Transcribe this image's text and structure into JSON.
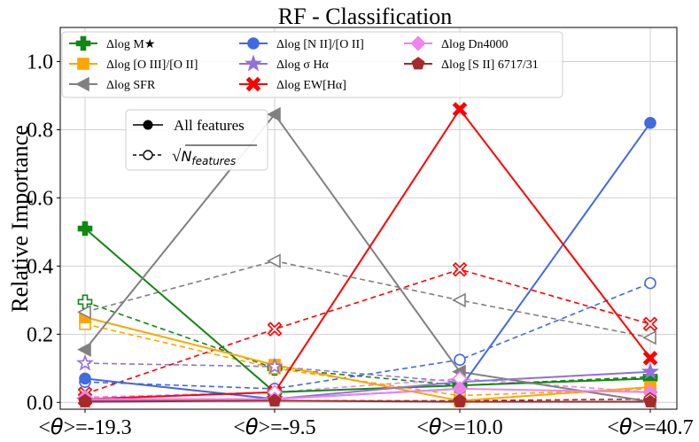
{
  "chart_data": {
    "type": "line",
    "title": "RF - Classification",
    "ylabel": "Relative Importance",
    "xlabel": "",
    "ylim": [
      -0.02,
      1.1
    ],
    "yticks": [
      "0.0",
      "0.2",
      "0.4",
      "0.6",
      "0.8",
      "1.0"
    ],
    "ytick_values": [
      0.0,
      0.2,
      0.4,
      0.6,
      0.8,
      1.0
    ],
    "xtick_labels": [
      {
        "left": "<",
        "theta": "θ",
        "right": ">=-19.3"
      },
      {
        "left": "<",
        "theta": "θ",
        "right": ">=-9.5"
      },
      {
        "left": "<",
        "theta": "θ",
        "right": ">=10.0"
      },
      {
        "left": "<",
        "theta": "θ",
        "right": ">=40.7"
      }
    ],
    "grid": true,
    "series": [
      {
        "name": "Δlog M★",
        "color": "#118811",
        "marker": "plus",
        "all_features": [
          0.51,
          0.03,
          0.05,
          0.07
        ],
        "sqrt_features": [
          0.295,
          0.1,
          0.05,
          0.075
        ]
      },
      {
        "name": "Δlog [O III]/[O II]",
        "color": "#ffa500",
        "marker": "square",
        "all_features": [
          0.25,
          0.11,
          0.005,
          0.045
        ],
        "sqrt_features": [
          0.23,
          0.1,
          0.02,
          0.04
        ]
      },
      {
        "name": "Δlog SFR",
        "color": "#808080",
        "marker": "triangle-left",
        "all_features": [
          0.155,
          0.845,
          0.09,
          0.002
        ],
        "sqrt_features": [
          0.265,
          0.415,
          0.3,
          0.19
        ]
      },
      {
        "name": "Δlog [N II]/[O II]",
        "color": "#4169e1",
        "marker": "circle",
        "all_features": [
          0.07,
          0.01,
          0.04,
          0.82
        ],
        "sqrt_features": [
          0.06,
          0.04,
          0.125,
          0.35
        ]
      },
      {
        "name": "Δlog σ Hα",
        "color": "#9370db",
        "marker": "star",
        "all_features": [
          0.005,
          0.01,
          0.06,
          0.09
        ],
        "sqrt_features": [
          0.115,
          0.105,
          0.06,
          0.09
        ]
      },
      {
        "name": "Δlog EW[Hα]",
        "color": "#ff0000",
        "marker": "x",
        "all_features": [
          0.01,
          0.03,
          0.86,
          0.13
        ],
        "sqrt_features": [
          0.025,
          0.215,
          0.39,
          0.23
        ]
      },
      {
        "name": "Δlog Dn4000",
        "color": "#ee82ee",
        "marker": "diamond",
        "all_features": [
          0.01,
          0.01,
          0.04,
          0.03
        ],
        "sqrt_features": [
          0.015,
          0.03,
          0.07,
          0.03
        ]
      },
      {
        "name": "Δlog [S II] 6717/31",
        "color": "#a52a2a",
        "marker": "pentagon",
        "all_features": [
          0.002,
          0.005,
          0.002,
          0.002
        ],
        "sqrt_features": [
          0.005,
          0.005,
          0.005,
          0.01
        ]
      }
    ],
    "inset_legend": {
      "solid_label": "All features",
      "dashed_label_prefix": "√",
      "dashed_label_main": "N",
      "dashed_label_sub": "features"
    }
  }
}
